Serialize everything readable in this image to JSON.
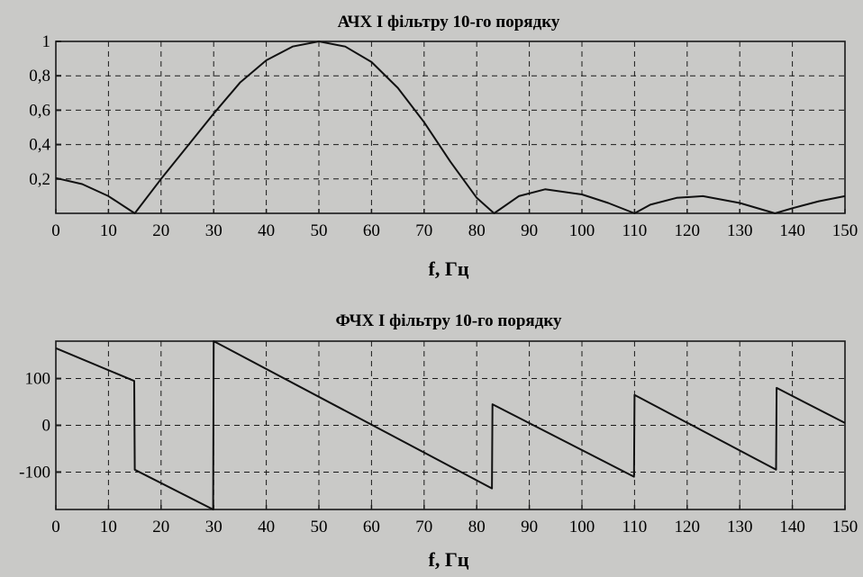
{
  "chart_data": [
    {
      "type": "line",
      "title": "АЧХ І фільтру 10-го порядку",
      "xlabel": "f, Гц",
      "ylabel": "",
      "xlim": [
        0,
        150
      ],
      "ylim": [
        0,
        1
      ],
      "grid": true,
      "x_ticks": [
        0,
        10,
        20,
        30,
        40,
        50,
        60,
        70,
        80,
        90,
        100,
        110,
        120,
        130,
        140,
        150
      ],
      "y_ticks": [
        0.2,
        0.4,
        0.6,
        0.8,
        1
      ],
      "y_tick_labels": [
        "0,2",
        "0,4",
        "0,6",
        "0,8",
        "1"
      ],
      "series": [
        {
          "x": [
            0,
            5,
            10,
            15,
            20,
            25,
            30,
            35,
            40,
            45,
            50,
            55,
            60,
            65,
            70,
            75,
            80,
            83.3,
            88,
            93,
            100,
            105,
            110,
            113,
            118,
            123,
            130,
            136.7,
            140,
            145,
            150
          ],
          "y": [
            0.205,
            0.17,
            0.1,
            0.0,
            0.2,
            0.39,
            0.58,
            0.76,
            0.89,
            0.97,
            1.0,
            0.97,
            0.88,
            0.73,
            0.53,
            0.3,
            0.09,
            0.0,
            0.1,
            0.14,
            0.11,
            0.06,
            0.0,
            0.05,
            0.09,
            0.1,
            0.06,
            0.0,
            0.03,
            0.07,
            0.1
          ]
        }
      ]
    },
    {
      "type": "line",
      "title": "ФЧХ І фільтру 10-го порядку",
      "xlabel": "f, Гц",
      "ylabel": "",
      "xlim": [
        0,
        150
      ],
      "ylim": [
        -180,
        180
      ],
      "grid": true,
      "x_ticks": [
        0,
        10,
        20,
        30,
        40,
        50,
        60,
        70,
        80,
        90,
        100,
        110,
        120,
        130,
        140,
        150
      ],
      "y_ticks": [
        -100,
        0,
        100
      ],
      "y_tick_labels": [
        "-100",
        "0",
        "100"
      ],
      "series": [
        {
          "x": [
            0,
            14.9,
            15.0,
            29.9,
            30.0,
            82.9,
            83.0,
            109.9,
            110.0,
            136.9,
            137.0,
            150
          ],
          "y": [
            165,
            95,
            -95,
            -180,
            180,
            -135,
            45,
            -110,
            65,
            -95,
            80,
            5
          ]
        }
      ]
    }
  ]
}
